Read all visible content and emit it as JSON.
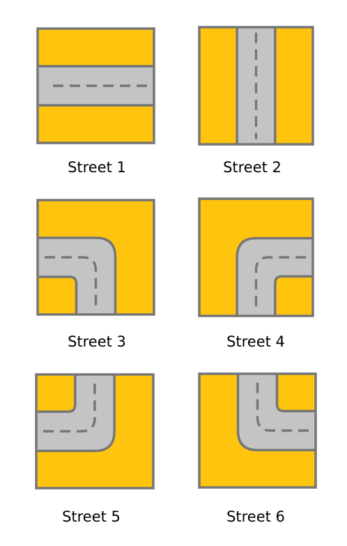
{
  "colors": {
    "ground": "#FFC50E",
    "road": "#C4C4C4",
    "outline": "#767676",
    "dash": "#767676",
    "label": "#000000",
    "background": "#FFFFFF"
  },
  "tiles": [
    {
      "id": "street-1",
      "label": "Street 1",
      "kind": "straight-horizontal"
    },
    {
      "id": "street-2",
      "label": "Street 2",
      "kind": "straight-vertical"
    },
    {
      "id": "street-3",
      "label": "Street 3",
      "kind": "curve-west-south"
    },
    {
      "id": "street-4",
      "label": "Street 4",
      "kind": "curve-east-south"
    },
    {
      "id": "street-5",
      "label": "Street 5",
      "kind": "curve-north-west"
    },
    {
      "id": "street-6",
      "label": "Street 6",
      "kind": "curve-north-east"
    }
  ]
}
